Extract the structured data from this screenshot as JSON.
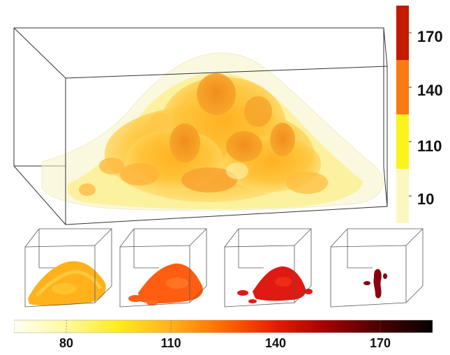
{
  "main_colorbar": {
    "ticks": [
      "170",
      "140",
      "110",
      "10"
    ],
    "colors": [
      "#c41a00",
      "#f77a12",
      "#fbf31c",
      "#fcf7c0"
    ]
  },
  "bottom_colorbar": {
    "ticks": [
      "80",
      "110",
      "140",
      "170"
    ],
    "range": [
      65,
      185
    ],
    "tick_values": [
      80,
      110,
      140,
      170
    ],
    "gradient": [
      "#fffff0",
      "#fff9a0",
      "#ffec1a",
      "#ffb21a",
      "#ff6a00",
      "#e81c00",
      "#a10000",
      "#4a0000",
      "#050000"
    ]
  },
  "panels": [
    {
      "name": "iso-80",
      "color": "#ffb21c"
    },
    {
      "name": "iso-110",
      "color": "#ff5e12"
    },
    {
      "name": "iso-140",
      "color": "#e01a12"
    },
    {
      "name": "iso-170",
      "color": "#8a0010"
    }
  ]
}
